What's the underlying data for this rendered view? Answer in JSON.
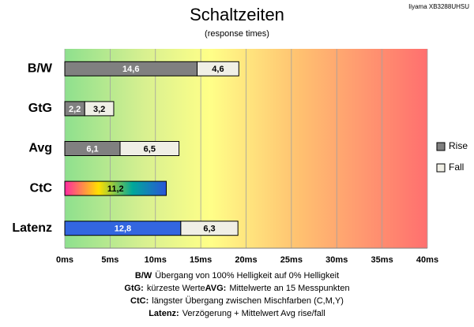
{
  "chart_data": {
    "type": "stacked_barh",
    "title": "Schaltzeiten",
    "subtitle": "(response times)",
    "annotation": "Iiyama XB3288UHSU",
    "categories": [
      "B/W",
      "GtG",
      "Avg",
      "CtC",
      "Latenz"
    ],
    "series": [
      {
        "name": "Rise",
        "color": "#808080",
        "point_colors": [
          "#808080",
          "#808080",
          "#808080",
          [
            "#ff2aa0",
            "#ffe000",
            "#00a89a",
            "#2a55d8"
          ],
          "#3366e0"
        ],
        "values": [
          14.6,
          2.2,
          6.1,
          11.2,
          12.8
        ],
        "value_labels": [
          "14,6",
          "2,2",
          "6,1",
          "11,2",
          "12,8"
        ]
      },
      {
        "name": "Fall",
        "color": "#f0efe6",
        "values": [
          4.6,
          3.2,
          6.5,
          null,
          6.3
        ],
        "value_labels": [
          "4,6",
          "3,2",
          "6,5",
          null,
          "6,3"
        ]
      }
    ],
    "xlim": [
      0,
      40
    ],
    "xticks": [
      {
        "value": 0,
        "label": "0ms"
      },
      {
        "value": 5,
        "label": "5ms"
      },
      {
        "value": 10,
        "label": "10ms"
      },
      {
        "value": 15,
        "label": "15ms"
      },
      {
        "value": 20,
        "label": "20ms"
      },
      {
        "value": 25,
        "label": "25ms"
      },
      {
        "value": 30,
        "label": "30ms"
      },
      {
        "value": 35,
        "label": "35ms"
      },
      {
        "value": 40,
        "label": "40ms"
      }
    ],
    "grid": true,
    "legend": "right",
    "notes": [
      [
        {
          "term": "B/W",
          "text": "Übergang von 100% Helligkeit auf 0% Helligkeit"
        }
      ],
      [
        {
          "term": "GtG:",
          "text": "kürzeste Werte"
        },
        {
          "term": "AVG:",
          "text": "Mittelwerte an 15 Messpunkten"
        }
      ],
      [
        {
          "term": "CtC:",
          "text": "längster Übergang zwischen Mischfarben (C,M,Y)"
        }
      ],
      [
        {
          "term": "Latenz:",
          "text": "Verzögerung + Mittelwert Avg rise/fall"
        }
      ]
    ]
  }
}
